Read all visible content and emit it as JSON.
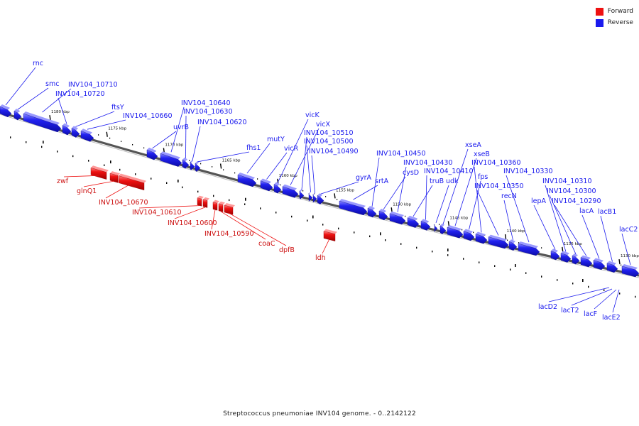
{
  "legend": {
    "forward_label": "Forward",
    "reverse_label": "Reverse",
    "forward_color": "#ee1111",
    "reverse_color": "#1a1aee"
  },
  "caption": "Streptococcus pneumoniae INV104 genome. - 0..2142122",
  "colors": {
    "backbone": "#888888",
    "tick": "#000000",
    "tick_label": "#111111"
  },
  "ticks": [
    {
      "kbp": 1180,
      "label": "1180 kbp"
    },
    {
      "kbp": 1175,
      "label": "1175 kbp"
    },
    {
      "kbp": 1170,
      "label": "1170 kbp"
    },
    {
      "kbp": 1165,
      "label": "1165 kbp"
    },
    {
      "kbp": 1160,
      "label": "1160 kbp"
    },
    {
      "kbp": 1155,
      "label": "1155 kbp"
    },
    {
      "kbp": 1150,
      "label": "1150 kbp"
    },
    {
      "kbp": 1145,
      "label": "1145 kbp"
    },
    {
      "kbp": 1140,
      "label": "1140 kbp"
    },
    {
      "kbp": 1135,
      "label": "1135 kbp"
    },
    {
      "kbp": 1130,
      "label": "1130 kbp"
    }
  ],
  "reverse_genes": [
    "rnc",
    "smc",
    "INV104_10710",
    "INV104_10720",
    "ftsY",
    "INV104_10660",
    "uvrB",
    "INV104_10640",
    "INV104_10630",
    "INV104_10620",
    "fhs1",
    "mutY",
    "vicR",
    "vicK",
    "vicX",
    "INV104_10510",
    "INV104_10500",
    "INV104_10490",
    "gyrA",
    "srtA",
    "INV104_10450",
    "cysD",
    "INV104_10430",
    "truB",
    "INV104_10410",
    "udk",
    "xseA",
    "xseB",
    "fps",
    "INV104_10360",
    "INV104_10350",
    "recN",
    "INV104_10330",
    "lepA",
    "INV104_10310",
    "INV104_10300",
    "INV104_10290",
    "lacA",
    "lacB1",
    "lacC2"
  ],
  "forward_genes": [
    "zwf",
    "glnQ1",
    "INV104_10670",
    "INV104_10610",
    "INV104_10600",
    "INV104_10590",
    "coaC",
    "dpfB",
    "ldh"
  ],
  "small_genes": [
    "lacD2",
    "lacT2",
    "lacF",
    "lacE2"
  ]
}
